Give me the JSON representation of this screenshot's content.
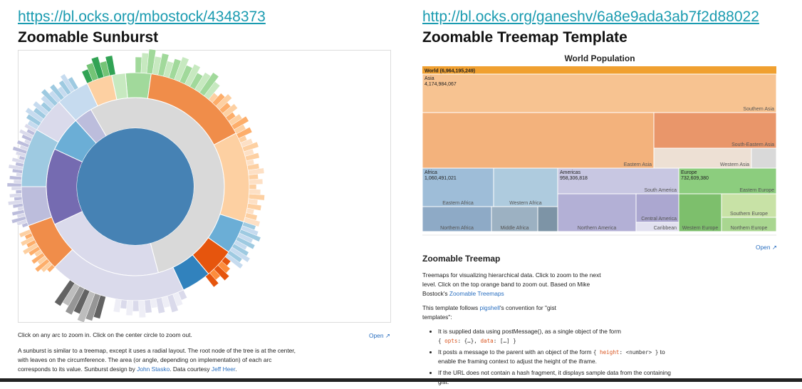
{
  "left": {
    "link": "https://bl.ocks.org/mbostock/4348373",
    "title": "Zoomable Sunburst",
    "caption": "Click on any arc to zoom in. Click on the center circle to zoom out.",
    "open": "Open",
    "description": [
      "A sunburst is similar to a treemap, except it uses a radial layout. The root node of the tree is at the center, with leaves on the circumference. The area (or angle, depending on implementation) of each arc corresponds to its value. Sunburst design by ",
      "John Stasko",
      ". Data courtesy ",
      "Jeff Heer",
      "."
    ]
  },
  "right": {
    "link": "http://bl.ocks.org/ganeshv/6a8e9ada3ab7f2d88022",
    "title": "Zoomable Treemap Template",
    "treemap": {
      "title": "World Population",
      "root": "World (6,964,195,249)",
      "groups": [
        {
          "name": "Asia",
          "total": "4,174,984,067"
        },
        {
          "name": "Africa",
          "total": "1,060,491,021"
        },
        {
          "name": "Americas",
          "total": "958,306,818"
        },
        {
          "name": "Europe",
          "total": "732,609,380"
        }
      ],
      "regions": [
        "Southern Asia",
        "South-Eastern Asia",
        "Eastern Asia",
        "Western Asia",
        "Eastern Africa",
        "Western Africa",
        "Northern Africa",
        "Middle Africa",
        "South America",
        "Central America",
        "Northern America",
        "Caribbean",
        "Eastern Europe",
        "Southern Europe",
        "Western Europe",
        "Northern Europe"
      ]
    },
    "open": "Open",
    "heading": "Zoomable Treemap",
    "intro": [
      "Treemaps for visualizing hierarchical data. Click to zoom to the next level. Click on the top orange band to zoom out. Based on Mike Bostock's ",
      "Zoomable Treemaps"
    ],
    "convention": [
      "This template follows ",
      "pigshell",
      "'s convention for \"gist templates\":"
    ],
    "bullets": [
      [
        "It is supplied data using postMessage(), as a single object of the form",
        "{ ",
        "opts",
        ": {…}, ",
        "data",
        ": […] }"
      ],
      [
        "It posts a message to the parent with an object of the form ",
        "{ ",
        "height",
        ": ",
        "<number>",
        " }",
        " to enable the framing context to adjust the height of the iframe."
      ],
      [
        "If the URL does not contain a hash fragment, it displays sample data from the containing gist."
      ]
    ]
  }
}
